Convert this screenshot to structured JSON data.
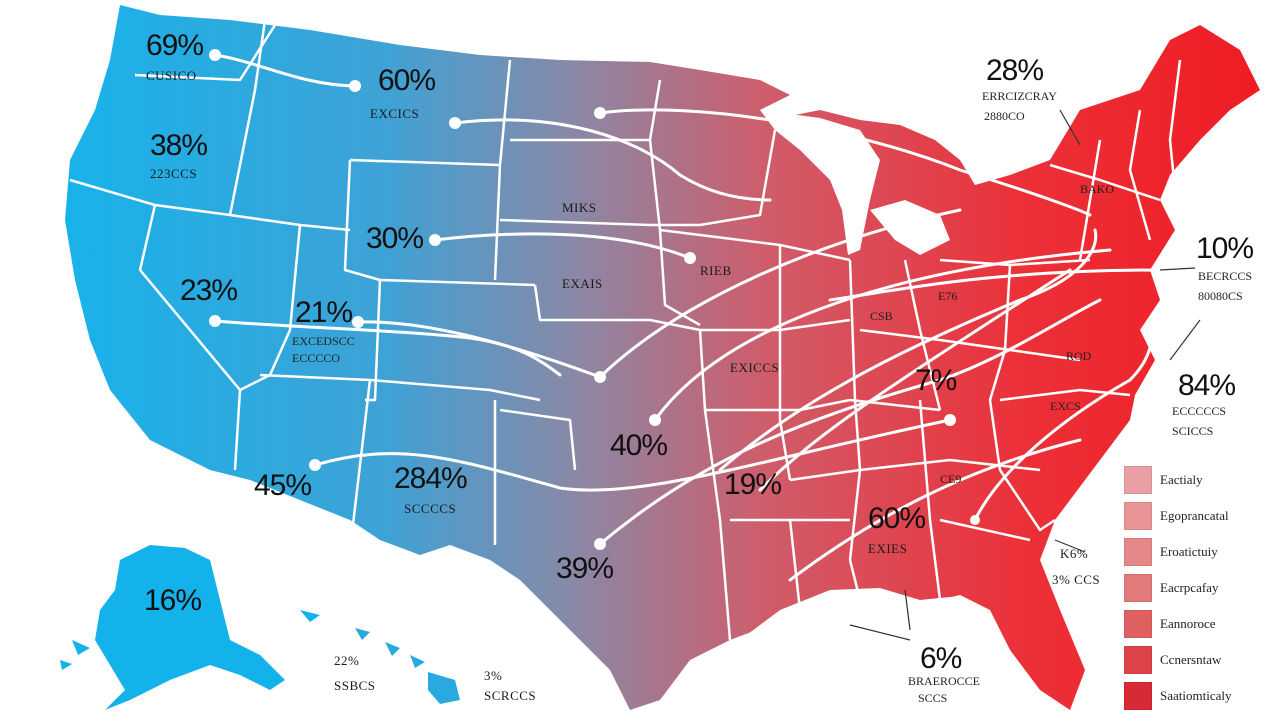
{
  "labels": [
    {
      "value": "69%",
      "sub": "CUSICO"
    },
    {
      "value": "60%",
      "sub": "EXCICS"
    },
    {
      "value": "28%",
      "sub": "ERRCIZCRAY",
      "sub2": "2880CO"
    },
    {
      "value": "38%",
      "sub": "223CCS"
    },
    {
      "value": "MIKS",
      "sub": ""
    },
    {
      "value": "30%",
      "sub": ""
    },
    {
      "value": "EXAIS",
      "sub": ""
    },
    {
      "value": "10%",
      "sub": "BECRCCS",
      "sub2": "80080CS"
    },
    {
      "value": "23%",
      "sub": ""
    },
    {
      "value": "21%",
      "sub": "EXCEDSCC",
      "sub2": "ECCCCO"
    },
    {
      "value": "RIEB",
      "sub": ""
    },
    {
      "value": "EXICCS",
      "sub": ""
    },
    {
      "value": "7%",
      "sub": ""
    },
    {
      "value": "84%",
      "sub": "ECCCCCS",
      "sub2": "SCICCS"
    },
    {
      "value": "40%",
      "sub": ""
    },
    {
      "value": "45%",
      "sub": ""
    },
    {
      "value": "284%",
      "sub": "SCCCCS"
    },
    {
      "value": "19%",
      "sub": ""
    },
    {
      "value": "60%",
      "sub": "EXIES"
    },
    {
      "value": "39%",
      "sub": ""
    },
    {
      "value": "16%",
      "sub": ""
    },
    {
      "value": "22%",
      "sub": "SSBCS"
    },
    {
      "value": "3%",
      "sub": "SCRCCS"
    },
    {
      "value": "6%",
      "sub": "BRAEROCCE",
      "sub2": "SCCS"
    },
    {
      "value": "K6%",
      "sub": "3% CCS"
    },
    {
      "value": "BAKO",
      "sub": ""
    },
    {
      "value": "E76",
      "sub": ""
    },
    {
      "value": "CE9",
      "sub": ""
    },
    {
      "value": "CSB",
      "sub": ""
    },
    {
      "value": "ROD",
      "sub": ""
    },
    {
      "value": "EXCS",
      "sub": ""
    }
  ],
  "legend": {
    "items": [
      {
        "label": "Eactialy",
        "color": "#e8a0a6"
      },
      {
        "label": "Egoprancatal",
        "color": "#e89496"
      },
      {
        "label": "Eroatictuiy",
        "color": "#e4888a"
      },
      {
        "label": "Eacrpcafay",
        "color": "#e27a7c"
      },
      {
        "label": "Eannoroce",
        "color": "#e06062"
      },
      {
        "label": "Ccnersntaw",
        "color": "#dc4448"
      },
      {
        "label": "Saatiomticaly",
        "color": "#d82a34"
      }
    ]
  },
  "colors": {
    "west": "#12b4ec",
    "mid": "#8a8aa0",
    "east": "#ee1c26",
    "border": "#ffffff"
  }
}
